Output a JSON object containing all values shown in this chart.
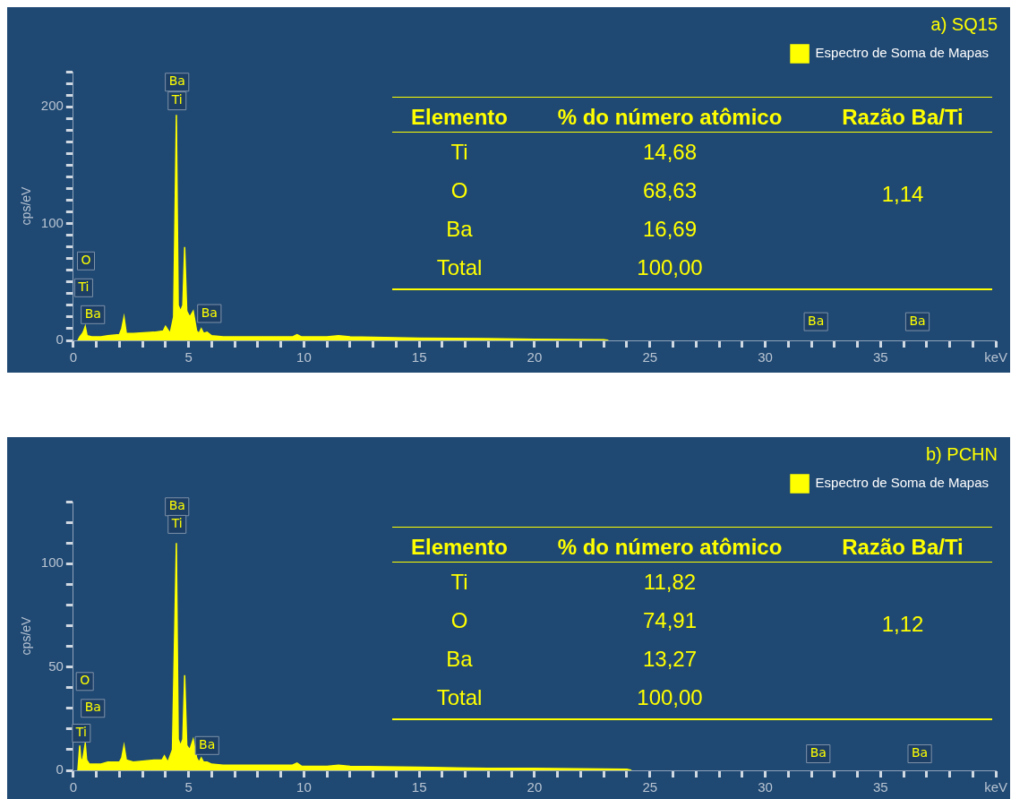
{
  "chart_data": [
    {
      "type": "area",
      "title": "a) SQ15",
      "ylabel": "cps/eV",
      "legend": "top right",
      "x": [
        0.2,
        0.28,
        0.4,
        0.45,
        0.52,
        0.6,
        0.8,
        1.2,
        1.5,
        2.0,
        2.1,
        2.2,
        2.3,
        2.6,
        3.5,
        3.9,
        4.0,
        4.2,
        4.35,
        4.47,
        4.55,
        4.65,
        4.75,
        4.83,
        4.92,
        5.05,
        5.2,
        5.35,
        5.45,
        5.55,
        5.65,
        5.8,
        6.0,
        6.5,
        7.5,
        8.5,
        9.5,
        9.7,
        9.9,
        11.0,
        11.5,
        12.0,
        15.0,
        18.0,
        20.0,
        23.0,
        23.2
      ],
      "series": [
        {
          "name": "Espectro de Soma de Mapas",
          "color": "#ffff00",
          "values": [
            0,
            3,
            6,
            8,
            12,
            4,
            3,
            3,
            4,
            5,
            10,
            20,
            6,
            6,
            7,
            8,
            12,
            6,
            20,
            193,
            30,
            25,
            30,
            80,
            25,
            20,
            25,
            8,
            6,
            10,
            6,
            7,
            4,
            3,
            3,
            3,
            3,
            5,
            3,
            3,
            4,
            3,
            2,
            1.5,
            1,
            0.5,
            0
          ]
        }
      ],
      "xlim": [
        0,
        40
      ],
      "ylim": [
        0,
        230
      ],
      "xticks": [
        0,
        {
          "value": 1,
          "label": null
        },
        {
          "value": 2,
          "label": null
        },
        {
          "value": 3,
          "label": null
        },
        {
          "value": 4,
          "label": null
        },
        5,
        {
          "value": 6,
          "label": null
        },
        {
          "value": 7,
          "label": null
        },
        {
          "value": 8,
          "label": null
        },
        {
          "value": 9,
          "label": null
        },
        10,
        {
          "value": 11,
          "label": null
        },
        {
          "value": 12,
          "label": null
        },
        {
          "value": 13,
          "label": null
        },
        {
          "value": 14,
          "label": null
        },
        15,
        {
          "value": 16,
          "label": null
        },
        {
          "value": 17,
          "label": null
        },
        {
          "value": 18,
          "label": null
        },
        {
          "value": 19,
          "label": null
        },
        20,
        {
          "value": 21,
          "label": null
        },
        {
          "value": 22,
          "label": null
        },
        {
          "value": 23,
          "label": null
        },
        {
          "value": 24,
          "label": null
        },
        25,
        {
          "value": 26,
          "label": null
        },
        {
          "value": 27,
          "label": null
        },
        {
          "value": 28,
          "label": null
        },
        {
          "value": 29,
          "label": null
        },
        30,
        {
          "value": 31,
          "label": null
        },
        {
          "value": 32,
          "label": null
        },
        {
          "value": 33,
          "label": null
        },
        {
          "value": 34,
          "label": null
        },
        35,
        {
          "value": 36,
          "label": null
        },
        {
          "value": 37,
          "label": null
        },
        {
          "value": 38,
          "label": null
        },
        {
          "value": 39,
          "label": null
        },
        {
          "value": 40,
          "label": "keV"
        }
      ],
      "yticks": [
        0,
        {
          "value": 10,
          "label": null
        },
        {
          "value": 20,
          "label": null
        },
        {
          "value": 30,
          "label": null
        },
        {
          "value": 40,
          "label": null
        },
        {
          "value": 50,
          "label": null
        },
        {
          "value": 60,
          "label": null
        },
        {
          "value": 70,
          "label": null
        },
        {
          "value": 80,
          "label": null
        },
        {
          "value": 90,
          "label": null
        },
        100,
        {
          "value": 110,
          "label": null
        },
        {
          "value": 120,
          "label": null
        },
        {
          "value": 130,
          "label": null
        },
        {
          "value": 140,
          "label": null
        },
        {
          "value": 150,
          "label": null
        },
        {
          "value": 160,
          "label": null
        },
        {
          "value": 170,
          "label": null
        },
        {
          "value": 180,
          "label": null
        },
        {
          "value": 190,
          "label": null
        },
        200,
        {
          "value": 210,
          "label": null
        },
        {
          "value": 220,
          "label": null
        },
        {
          "value": 230,
          "label": null
        }
      ],
      "annotations": [
        {
          "text": "Ba",
          "x": 4.5,
          "y": 221
        },
        {
          "text": "Ti",
          "x": 4.5,
          "y": 205
        },
        {
          "text": "O",
          "x": 0.55,
          "y": 68
        },
        {
          "text": "Ti",
          "x": 0.45,
          "y": 45
        },
        {
          "text": "Ba",
          "x": 0.85,
          "y": 22
        },
        {
          "text": "Ba",
          "x": 5.9,
          "y": 23
        },
        {
          "text": "Ba",
          "x": 32.2,
          "y": 16
        },
        {
          "text": "Ba",
          "x": 36.6,
          "y": 16
        },
        "Elemento",
        "% do número atômico",
        "Razão Ba/Ti",
        "Ti",
        "14,68",
        "O",
        "68,63",
        "Ba",
        "16,69",
        "Total",
        "100,00",
        "1,14"
      ]
    },
    {
      "type": "area",
      "title": "b) PCHN",
      "ylabel": "cps/eV",
      "legend": "top right",
      "x": [
        0.2,
        0.28,
        0.32,
        0.38,
        0.45,
        0.52,
        0.58,
        0.7,
        1.2,
        1.5,
        2.0,
        2.1,
        2.2,
        2.3,
        2.6,
        3.5,
        3.85,
        3.95,
        4.1,
        4.3,
        4.47,
        4.55,
        4.65,
        4.75,
        4.83,
        4.92,
        5.05,
        5.2,
        5.35,
        5.45,
        5.55,
        5.65,
        5.8,
        6.0,
        6.5,
        7.5,
        8.5,
        9.5,
        9.7,
        9.9,
        11.0,
        11.5,
        12.0,
        15.0,
        18.0,
        20.0,
        24.0,
        24.2
      ],
      "series": [
        {
          "name": "Espectro de Soma de Mapas",
          "color": "#ffff00",
          "values": [
            0,
            12,
            6,
            4,
            8,
            13,
            5,
            3,
            3,
            4,
            4,
            6,
            12,
            5,
            4,
            5,
            5,
            7,
            4,
            10,
            110,
            15,
            12,
            15,
            46,
            12,
            10,
            15,
            6,
            4,
            6,
            4,
            4,
            3,
            2.5,
            2.5,
            2.5,
            2.5,
            3.5,
            2,
            2,
            2.5,
            2,
            1.5,
            1,
            1,
            0.5,
            0
          ]
        }
      ],
      "xlim": [
        0,
        40
      ],
      "ylim": [
        0,
        130
      ],
      "xticks": [
        0,
        {
          "value": 1,
          "label": null
        },
        {
          "value": 2,
          "label": null
        },
        {
          "value": 3,
          "label": null
        },
        {
          "value": 4,
          "label": null
        },
        5,
        {
          "value": 6,
          "label": null
        },
        {
          "value": 7,
          "label": null
        },
        {
          "value": 8,
          "label": null
        },
        {
          "value": 9,
          "label": null
        },
        10,
        {
          "value": 11,
          "label": null
        },
        {
          "value": 12,
          "label": null
        },
        {
          "value": 13,
          "label": null
        },
        {
          "value": 14,
          "label": null
        },
        15,
        {
          "value": 16,
          "label": null
        },
        {
          "value": 17,
          "label": null
        },
        {
          "value": 18,
          "label": null
        },
        {
          "value": 19,
          "label": null
        },
        20,
        {
          "value": 21,
          "label": null
        },
        {
          "value": 22,
          "label": null
        },
        {
          "value": 23,
          "label": null
        },
        {
          "value": 24,
          "label": null
        },
        25,
        {
          "value": 26,
          "label": null
        },
        {
          "value": 27,
          "label": null
        },
        {
          "value": 28,
          "label": null
        },
        {
          "value": 29,
          "label": null
        },
        30,
        {
          "value": 31,
          "label": null
        },
        {
          "value": 32,
          "label": null
        },
        {
          "value": 33,
          "label": null
        },
        {
          "value": 34,
          "label": null
        },
        35,
        {
          "value": 36,
          "label": null
        },
        {
          "value": 37,
          "label": null
        },
        {
          "value": 38,
          "label": null
        },
        {
          "value": 39,
          "label": null
        },
        {
          "value": 40,
          "label": "keV"
        }
      ],
      "yticks": [
        0,
        {
          "value": 10,
          "label": null
        },
        {
          "value": 20,
          "label": null
        },
        {
          "value": 30,
          "label": null
        },
        {
          "value": 40,
          "label": null
        },
        50,
        {
          "value": 60,
          "label": null
        },
        {
          "value": 70,
          "label": null
        },
        {
          "value": 80,
          "label": null
        },
        {
          "value": 90,
          "label": null
        },
        100,
        {
          "value": 110,
          "label": null
        },
        {
          "value": 120,
          "label": null
        },
        {
          "value": 130,
          "label": null
        }
      ],
      "annotations": [
        {
          "text": "Ba",
          "x": 4.5,
          "y": 127.5
        },
        {
          "text": "Ti",
          "x": 4.5,
          "y": 119
        },
        {
          "text": "O",
          "x": 0.5,
          "y": 43
        },
        {
          "text": "Ba",
          "x": 0.85,
          "y": 30
        },
        {
          "text": "Ti",
          "x": 0.35,
          "y": 18
        },
        {
          "text": "Ba",
          "x": 5.8,
          "y": 12
        },
        {
          "text": "Ba",
          "x": 32.3,
          "y": 8
        },
        {
          "text": "Ba",
          "x": 36.7,
          "y": 8
        },
        "Elemento",
        "% do número atômico",
        "Razão Ba/Ti",
        "Ti",
        "11,82",
        "O",
        "74,91",
        "Ba",
        "13,27",
        "Total",
        "100,00",
        "1,12"
      ]
    }
  ]
}
